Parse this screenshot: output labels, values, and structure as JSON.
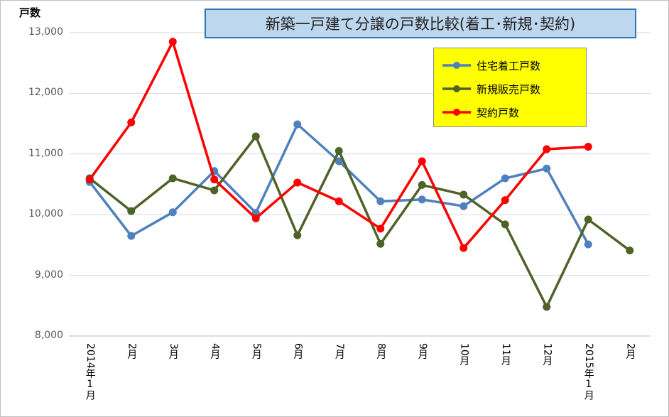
{
  "chart_data": {
    "type": "line",
    "title": "新築一戸建て分譲の戸数比較(着工･新規･契約)",
    "ylabel": "戸数",
    "xlabel": "",
    "ylim": [
      8000,
      13000
    ],
    "yticks": [
      8000,
      9000,
      10000,
      11000,
      12000,
      13000
    ],
    "ytick_labels": [
      "8,000",
      "9,000",
      "10,000",
      "11,000",
      "12,000",
      "13,000"
    ],
    "categories": [
      "2014年1月",
      "2月",
      "3月",
      "4月",
      "5月",
      "6月",
      "7月",
      "8月",
      "9月",
      "10月",
      "11月",
      "12月",
      "2015年1月",
      "2月"
    ],
    "x_tick_text": [
      {
        "main": "2014年",
        "sub": "1月"
      },
      {
        "main": "2月",
        "sub": ""
      },
      {
        "main": "3月",
        "sub": ""
      },
      {
        "main": "4月",
        "sub": ""
      },
      {
        "main": "5月",
        "sub": ""
      },
      {
        "main": "6月",
        "sub": ""
      },
      {
        "main": "7月",
        "sub": ""
      },
      {
        "main": "8月",
        "sub": ""
      },
      {
        "main": "9月",
        "sub": ""
      },
      {
        "main": "10月",
        "sub": ""
      },
      {
        "main": "11月",
        "sub": ""
      },
      {
        "main": "12月",
        "sub": ""
      },
      {
        "main": "2015年",
        "sub": "1月"
      },
      {
        "main": "2月",
        "sub": ""
      }
    ],
    "grid": true,
    "legend_position": "top-right",
    "series": [
      {
        "name": "住宅着工戸数",
        "color": "#4f81bd",
        "values": [
          10540,
          9650,
          10040,
          10720,
          10030,
          11490,
          10880,
          10220,
          10250,
          10140,
          10600,
          10760,
          9510,
          null
        ]
      },
      {
        "name": "新規販売戸数",
        "color": "#4f6228",
        "values": [
          10600,
          10060,
          10600,
          10400,
          11290,
          9660,
          11050,
          9520,
          10490,
          10330,
          9840,
          8480,
          9920,
          9410
        ]
      },
      {
        "name": "契約戸数",
        "color": "#ff0000",
        "values": [
          10580,
          11520,
          12850,
          10580,
          9940,
          10530,
          10220,
          9770,
          10880,
          9450,
          10240,
          11080,
          11120,
          null
        ]
      }
    ]
  }
}
